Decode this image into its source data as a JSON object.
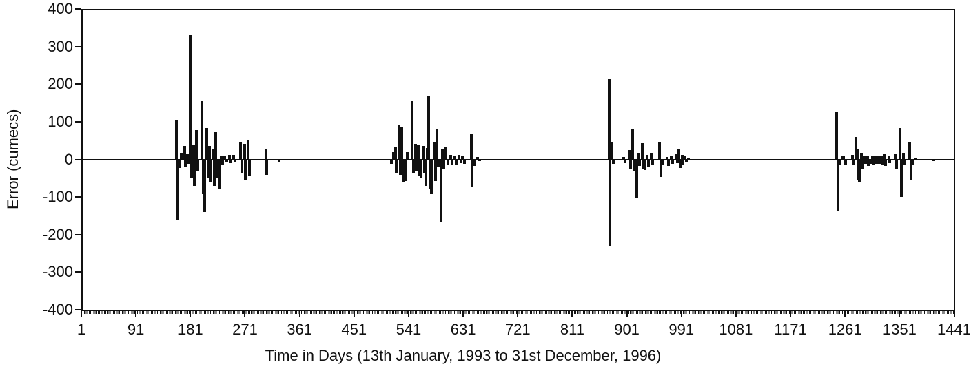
{
  "chart_data": {
    "type": "bar",
    "title": "",
    "xlabel": "Time in Days (13th January, 1993 to 31st December, 1996)",
    "ylabel": "Error (cumecs)",
    "xlim": [
      1,
      1441
    ],
    "ylim": [
      -400,
      400
    ],
    "x_ticks": [
      1,
      91,
      181,
      271,
      361,
      451,
      541,
      631,
      721,
      811,
      901,
      991,
      1081,
      1171,
      1261,
      1351,
      1441
    ],
    "y_ticks": [
      400,
      300,
      200,
      100,
      0,
      -100,
      -200,
      -300,
      -400
    ],
    "grid": false,
    "legend": "none",
    "bar_color": "#111111",
    "axis_color": "#111111",
    "series": [
      {
        "name": "Error",
        "points": [
          [
            158,
            105
          ],
          [
            160,
            -160
          ],
          [
            163,
            -22
          ],
          [
            166,
            16
          ],
          [
            171,
            35
          ],
          [
            173,
            -20
          ],
          [
            176,
            14
          ],
          [
            178,
            -12
          ],
          [
            181,
            330
          ],
          [
            183,
            -50
          ],
          [
            186,
            40
          ],
          [
            188,
            -71
          ],
          [
            191,
            78
          ],
          [
            193,
            -31
          ],
          [
            200,
            155
          ],
          [
            202,
            -92
          ],
          [
            205,
            -140
          ],
          [
            208,
            84
          ],
          [
            210,
            -50
          ],
          [
            213,
            35
          ],
          [
            215,
            -62
          ],
          [
            218,
            29
          ],
          [
            220,
            -71
          ],
          [
            223,
            72
          ],
          [
            225,
            -50
          ],
          [
            228,
            -77
          ],
          [
            232,
            9
          ],
          [
            234,
            -13
          ],
          [
            238,
            10
          ],
          [
            241,
            -8
          ],
          [
            245,
            12
          ],
          [
            248,
            -10
          ],
          [
            252,
            11
          ],
          [
            255,
            -9
          ],
          [
            264,
            45
          ],
          [
            266,
            -35
          ],
          [
            270,
            42
          ],
          [
            272,
            -56
          ],
          [
            276,
            51
          ],
          [
            278,
            -44
          ],
          [
            306,
            29
          ],
          [
            307,
            -42
          ],
          [
            327,
            -8
          ],
          [
            513,
            -12
          ],
          [
            516,
            20
          ],
          [
            519,
            34
          ],
          [
            521,
            -35
          ],
          [
            525,
            93
          ],
          [
            527,
            -41
          ],
          [
            530,
            87
          ],
          [
            532,
            -62
          ],
          [
            536,
            -58
          ],
          [
            539,
            20
          ],
          [
            547,
            155
          ],
          [
            549,
            -35
          ],
          [
            552,
            41
          ],
          [
            554,
            -31
          ],
          [
            557,
            38
          ],
          [
            559,
            -43
          ],
          [
            562,
            -49
          ],
          [
            565,
            35
          ],
          [
            567,
            -37
          ],
          [
            570,
            -71
          ],
          [
            572,
            30
          ],
          [
            574,
            170
          ],
          [
            576,
            -80
          ],
          [
            579,
            -92
          ],
          [
            583,
            44
          ],
          [
            585,
            -58
          ],
          [
            588,
            81
          ],
          [
            590,
            -20
          ],
          [
            594,
            -166
          ],
          [
            597,
            29
          ],
          [
            599,
            -25
          ],
          [
            603,
            32
          ],
          [
            606,
            -15
          ],
          [
            610,
            11
          ],
          [
            613,
            -16
          ],
          [
            617,
            10
          ],
          [
            620,
            -13
          ],
          [
            624,
            12
          ],
          [
            627,
            -10
          ],
          [
            630,
            8
          ],
          [
            633,
            -12
          ],
          [
            644,
            67
          ],
          [
            646,
            -74
          ],
          [
            650,
            -18
          ],
          [
            655,
            6
          ],
          [
            658,
            -5
          ],
          [
            872,
            213
          ],
          [
            873,
            -229
          ],
          [
            876,
            47
          ],
          [
            879,
            -12
          ],
          [
            896,
            7
          ],
          [
            898,
            -10
          ],
          [
            905,
            24
          ],
          [
            907,
            -26
          ],
          [
            911,
            79
          ],
          [
            913,
            -31
          ],
          [
            917,
            -102
          ],
          [
            920,
            15
          ],
          [
            922,
            -18
          ],
          [
            926,
            43
          ],
          [
            928,
            -24
          ],
          [
            931,
            -28
          ],
          [
            935,
            11
          ],
          [
            937,
            -21
          ],
          [
            941,
            16
          ],
          [
            943,
            -13
          ],
          [
            955,
            44
          ],
          [
            957,
            -47
          ],
          [
            960,
            -13
          ],
          [
            968,
            7
          ],
          [
            970,
            -17
          ],
          [
            974,
            9
          ],
          [
            976,
            -12
          ],
          [
            982,
            13
          ],
          [
            984,
            -10
          ],
          [
            987,
            26
          ],
          [
            989,
            -23
          ],
          [
            992,
            11
          ],
          [
            994,
            -15
          ],
          [
            997,
            9
          ],
          [
            999,
            -9
          ],
          [
            1003,
            5
          ],
          [
            1247,
            125
          ],
          [
            1249,
            -138
          ],
          [
            1253,
            -15
          ],
          [
            1256,
            10
          ],
          [
            1259,
            8
          ],
          [
            1262,
            -13
          ],
          [
            1273,
            12
          ],
          [
            1275,
            -14
          ],
          [
            1279,
            60
          ],
          [
            1281,
            28
          ],
          [
            1283,
            -56
          ],
          [
            1285,
            -61
          ],
          [
            1288,
            15
          ],
          [
            1290,
            -26
          ],
          [
            1293,
            9
          ],
          [
            1295,
            -12
          ],
          [
            1298,
            10
          ],
          [
            1300,
            -17
          ],
          [
            1303,
            -12
          ],
          [
            1306,
            8
          ],
          [
            1308,
            -15
          ],
          [
            1311,
            10
          ],
          [
            1313,
            -11
          ],
          [
            1316,
            9
          ],
          [
            1318,
            -12
          ],
          [
            1321,
            10
          ],
          [
            1323,
            -13
          ],
          [
            1326,
            13
          ],
          [
            1328,
            -17
          ],
          [
            1333,
            8
          ],
          [
            1335,
            -10
          ],
          [
            1344,
            14
          ],
          [
            1346,
            -26
          ],
          [
            1352,
            84
          ],
          [
            1354,
            -100
          ],
          [
            1357,
            17
          ],
          [
            1359,
            -15
          ],
          [
            1368,
            46
          ],
          [
            1370,
            -56
          ],
          [
            1373,
            -14
          ],
          [
            1378,
            5
          ],
          [
            1408,
            -4
          ]
        ]
      }
    ]
  }
}
